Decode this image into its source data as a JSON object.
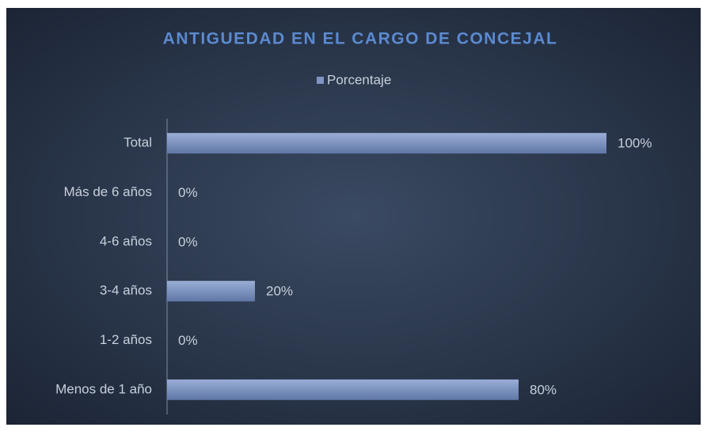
{
  "chart_data": {
    "type": "bar",
    "orientation": "horizontal",
    "title": "ANTIGUEDAD EN EL CARGO DE CONCEJAL",
    "categories": [
      "Total",
      "Más de 6 años",
      "4-6 años",
      "3-4 años",
      "1-2 años",
      "Menos de 1 año"
    ],
    "series": [
      {
        "name": "Porcentaje",
        "color": "#7f95c2",
        "values": [
          100,
          0,
          0,
          20,
          0,
          80
        ],
        "value_labels": [
          "100%",
          "0%",
          "0%",
          "20%",
          "0%",
          "80%"
        ]
      }
    ],
    "legend": "top"
  }
}
